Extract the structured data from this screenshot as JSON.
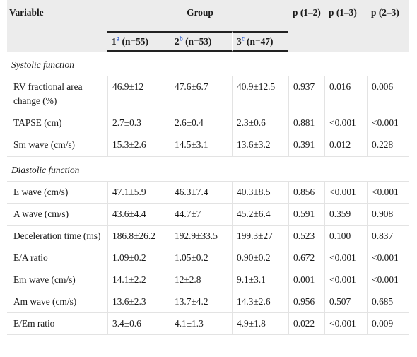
{
  "headers": {
    "variable": "Variable",
    "group": "Group",
    "p12": "p (1–2)",
    "p13": "p (1–3)",
    "p23": "p (2–3)",
    "groups": [
      {
        "num": "1",
        "sup": "a",
        "n": " (n=55)"
      },
      {
        "num": "2",
        "sup": "b",
        "n": " (n=53)"
      },
      {
        "num": "3",
        "sup": "c",
        "n": " (n=47)"
      }
    ]
  },
  "sections": [
    {
      "title": "Systolic function",
      "rows": [
        {
          "label": "RV fractional area change (%)",
          "g1": "46.9±12",
          "g2": "47.6±6.7",
          "g3": "40.9±12.5",
          "p12": "0.937",
          "p13": "0.016",
          "p23": "0.006"
        },
        {
          "label": "TAPSE (cm)",
          "g1": "2.7±0.3",
          "g2": "2.6±0.4",
          "g3": "2.3±0.6",
          "p12": "0.881",
          "p13": "<0.001",
          "p23": "<0.001"
        },
        {
          "label": "Sm wave (cm/s)",
          "g1": "15.3±2.6",
          "g2": "14.5±3.1",
          "g3": "13.6±3.2",
          "p12": "0.391",
          "p13": "0.012",
          "p23": "0.228"
        }
      ]
    },
    {
      "title": "Diastolic function",
      "rows": [
        {
          "label": "E wave (cm/s)",
          "g1": "47.1±5.9",
          "g2": "46.3±7.4",
          "g3": "40.3±8.5",
          "p12": "0.856",
          "p13": "<0.001",
          "p23": "<0.001"
        },
        {
          "label": "A wave (cm/s)",
          "g1": "43.6±4.4",
          "g2": "44.7±7",
          "g3": "45.2±6.4",
          "p12": "0.591",
          "p13": "0.359",
          "p23": "0.908"
        },
        {
          "label": "Deceleration time (ms)",
          "g1": "186.8±26.2",
          "g2": "192.9±33.5",
          "g3": "199.3±27",
          "p12": "0.523",
          "p13": "0.100",
          "p23": "0.837"
        },
        {
          "label": "E/A ratio",
          "g1": "1.09±0.2",
          "g2": "1.05±0.2",
          "g3": "0.90±0.2",
          "p12": "0.672",
          "p13": "<0.001",
          "p23": "<0.001"
        },
        {
          "label": "Em wave (cm/s)",
          "g1": "14.1±2.2",
          "g2": "12±2.8",
          "g3": "9.1±3.1",
          "p12": "0.001",
          "p13": "<0.001",
          "p23": "<0.001"
        },
        {
          "label": "Am wave (cm/s)",
          "g1": "13.6±2.3",
          "g2": "13.7±4.2",
          "g3": "14.3±2.6",
          "p12": "0.956",
          "p13": "0.507",
          "p23": "0.685"
        },
        {
          "label": "E/Em ratio",
          "g1": "3.4±0.6",
          "g2": "4.1±1.3",
          "g3": "4.9±1.8",
          "p12": "0.022",
          "p13": "<0.001",
          "p23": "0.009"
        }
      ]
    }
  ]
}
